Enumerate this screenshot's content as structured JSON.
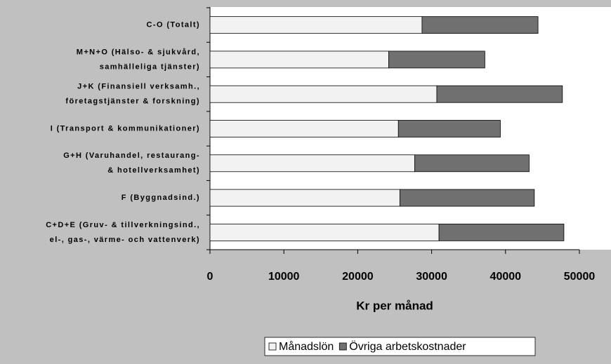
{
  "chart_data": {
    "type": "stacked_barh",
    "categories": [
      [
        "C-O (Totalt)"
      ],
      [
        "M+N+O (Hälso- & sjukvård,",
        "samhälleliga tjänster)"
      ],
      [
        "J+K (Finansiell verksamh.,",
        "företagstjänster & forskning)"
      ],
      [
        "I (Transport & kommunikationer)"
      ],
      [
        "G+H (Varuhandel, restaurang-",
        "& hotellverksamhet)"
      ],
      [
        "F (Byggnadsind.)"
      ],
      [
        "C+D+E (Gruv- & tillverkningsind.,",
        "el-, gas-, värme- och vattenverk)"
      ]
    ],
    "series": [
      {
        "name": "Månadslön",
        "color": "#f2f2f2",
        "values": [
          28700,
          24200,
          30700,
          25500,
          27700,
          25700,
          31000
        ]
      },
      {
        "name": "Övriga arbetskostnader",
        "color": "#707070",
        "values": [
          15700,
          13000,
          17000,
          13800,
          15500,
          18200,
          16900
        ]
      }
    ],
    "xlabel": "Kr per månad",
    "xlim": [
      0,
      50000
    ],
    "xticks": [
      0,
      10000,
      20000,
      30000,
      40000,
      50000
    ],
    "legend": "bottom"
  }
}
